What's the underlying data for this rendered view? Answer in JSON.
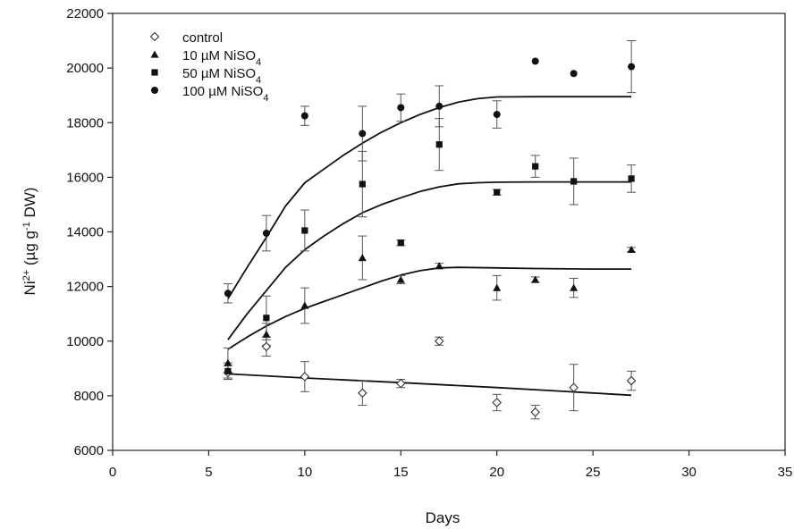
{
  "chart_data": {
    "type": "scatter",
    "xlabel": "Days",
    "ylabel": {
      "base": "Ni",
      "sup": "2+",
      "rest": " (µg g",
      "sup2": "-1",
      "rest2": " DW)"
    },
    "xlim": [
      0,
      35
    ],
    "ylim": [
      6000,
      22000
    ],
    "x_ticks": [
      "0",
      "5",
      "10",
      "15",
      "20",
      "25",
      "30",
      "35"
    ],
    "y_ticks": [
      "6000",
      "8000",
      "10000",
      "12000",
      "14000",
      "16000",
      "18000",
      "20000",
      "22000"
    ],
    "legend_position": "top-left",
    "series": [
      {
        "name": "control",
        "marker": "open-diamond",
        "points": [
          {
            "x": 6,
            "y": 8850,
            "err": 250
          },
          {
            "x": 8,
            "y": 9800,
            "err": 350
          },
          {
            "x": 10,
            "y": 8700,
            "err": 550
          },
          {
            "x": 13,
            "y": 8100,
            "err": 450
          },
          {
            "x": 15,
            "y": 8450,
            "err": 150
          },
          {
            "x": 17,
            "y": 10000,
            "err": 150
          },
          {
            "x": 20,
            "y": 7750,
            "err": 300
          },
          {
            "x": 22,
            "y": 7400,
            "err": 250
          },
          {
            "x": 24,
            "y": 8300,
            "err": 850
          },
          {
            "x": 27,
            "y": 8550,
            "err": 350
          }
        ],
        "fit": [
          [
            6,
            8800
          ],
          [
            10,
            8650
          ],
          [
            15,
            8480
          ],
          [
            20,
            8300
          ],
          [
            25,
            8100
          ],
          [
            27,
            8020
          ]
        ]
      },
      {
        "name": "10 µM NiSO",
        "name_sub": "4",
        "marker": "triangle",
        "points": [
          {
            "x": 6,
            "y": 9200,
            "err": 550
          },
          {
            "x": 8,
            "y": 10250,
            "err": 400
          },
          {
            "x": 10,
            "y": 11300,
            "err": 650
          },
          {
            "x": 13,
            "y": 13050,
            "err": 800
          },
          {
            "x": 15,
            "y": 12250,
            "err": 150
          },
          {
            "x": 17,
            "y": 12750,
            "err": 100
          },
          {
            "x": 20,
            "y": 11950,
            "err": 450
          },
          {
            "x": 22,
            "y": 12250,
            "err": 100
          },
          {
            "x": 24,
            "y": 11950,
            "err": 350
          },
          {
            "x": 27,
            "y": 13350,
            "err": 80
          }
        ],
        "fit": [
          [
            6,
            9700
          ],
          [
            7,
            10150
          ],
          [
            8,
            10550
          ],
          [
            9,
            10900
          ],
          [
            10,
            11200
          ],
          [
            11,
            11450
          ],
          [
            12,
            11700
          ],
          [
            13,
            11950
          ],
          [
            14,
            12200
          ],
          [
            15,
            12420
          ],
          [
            16,
            12580
          ],
          [
            17,
            12680
          ],
          [
            18,
            12700
          ],
          [
            20,
            12680
          ],
          [
            22,
            12660
          ],
          [
            25,
            12640
          ],
          [
            27,
            12640
          ]
        ]
      },
      {
        "name": "50 µM NiSO",
        "name_sub": "4",
        "marker": "square",
        "points": [
          {
            "x": 6,
            "y": 8900,
            "err": 300
          },
          {
            "x": 8,
            "y": 10850,
            "err": 800
          },
          {
            "x": 10,
            "y": 14050,
            "err": 750
          },
          {
            "x": 13,
            "y": 15750,
            "err": 1200
          },
          {
            "x": 15,
            "y": 13600,
            "err": 100
          },
          {
            "x": 17,
            "y": 17200,
            "err": 950
          },
          {
            "x": 20,
            "y": 15450,
            "err": 100
          },
          {
            "x": 22,
            "y": 16400,
            "err": 400
          },
          {
            "x": 24,
            "y": 15850,
            "err": 850
          },
          {
            "x": 27,
            "y": 15950,
            "err": 500
          }
        ],
        "fit": [
          [
            6,
            10050
          ],
          [
            7,
            11000
          ],
          [
            8,
            11850
          ],
          [
            9,
            12700
          ],
          [
            10,
            13350
          ],
          [
            11,
            13850
          ],
          [
            12,
            14300
          ],
          [
            13,
            14700
          ],
          [
            14,
            15000
          ],
          [
            15,
            15250
          ],
          [
            16,
            15480
          ],
          [
            17,
            15650
          ],
          [
            18,
            15760
          ],
          [
            19,
            15800
          ],
          [
            20,
            15820
          ],
          [
            22,
            15830
          ],
          [
            25,
            15830
          ],
          [
            27,
            15830
          ]
        ]
      },
      {
        "name": "100 µM NiSO",
        "name_sub": "4",
        "marker": "circle",
        "points": [
          {
            "x": 6,
            "y": 11750,
            "err": 350
          },
          {
            "x": 8,
            "y": 13950,
            "err": 650
          },
          {
            "x": 10,
            "y": 18250,
            "err": 350
          },
          {
            "x": 13,
            "y": 17600,
            "err": 1000
          },
          {
            "x": 15,
            "y": 18550,
            "err": 500
          },
          {
            "x": 17,
            "y": 18600,
            "err": 750
          },
          {
            "x": 20,
            "y": 18300,
            "err": 500
          },
          {
            "x": 22,
            "y": 20250,
            "err": 0
          },
          {
            "x": 24,
            "y": 19800,
            "err": 0
          },
          {
            "x": 27,
            "y": 20050,
            "err": 950
          }
        ],
        "fit": [
          [
            6,
            11550
          ],
          [
            7,
            12700
          ],
          [
            8,
            13800
          ],
          [
            9,
            14950
          ],
          [
            10,
            15800
          ],
          [
            11,
            16300
          ],
          [
            12,
            16800
          ],
          [
            13,
            17250
          ],
          [
            14,
            17650
          ],
          [
            15,
            18000
          ],
          [
            16,
            18300
          ],
          [
            17,
            18550
          ],
          [
            18,
            18750
          ],
          [
            19,
            18880
          ],
          [
            20,
            18940
          ],
          [
            22,
            18950
          ],
          [
            25,
            18950
          ],
          [
            27,
            18950
          ]
        ]
      }
    ]
  }
}
